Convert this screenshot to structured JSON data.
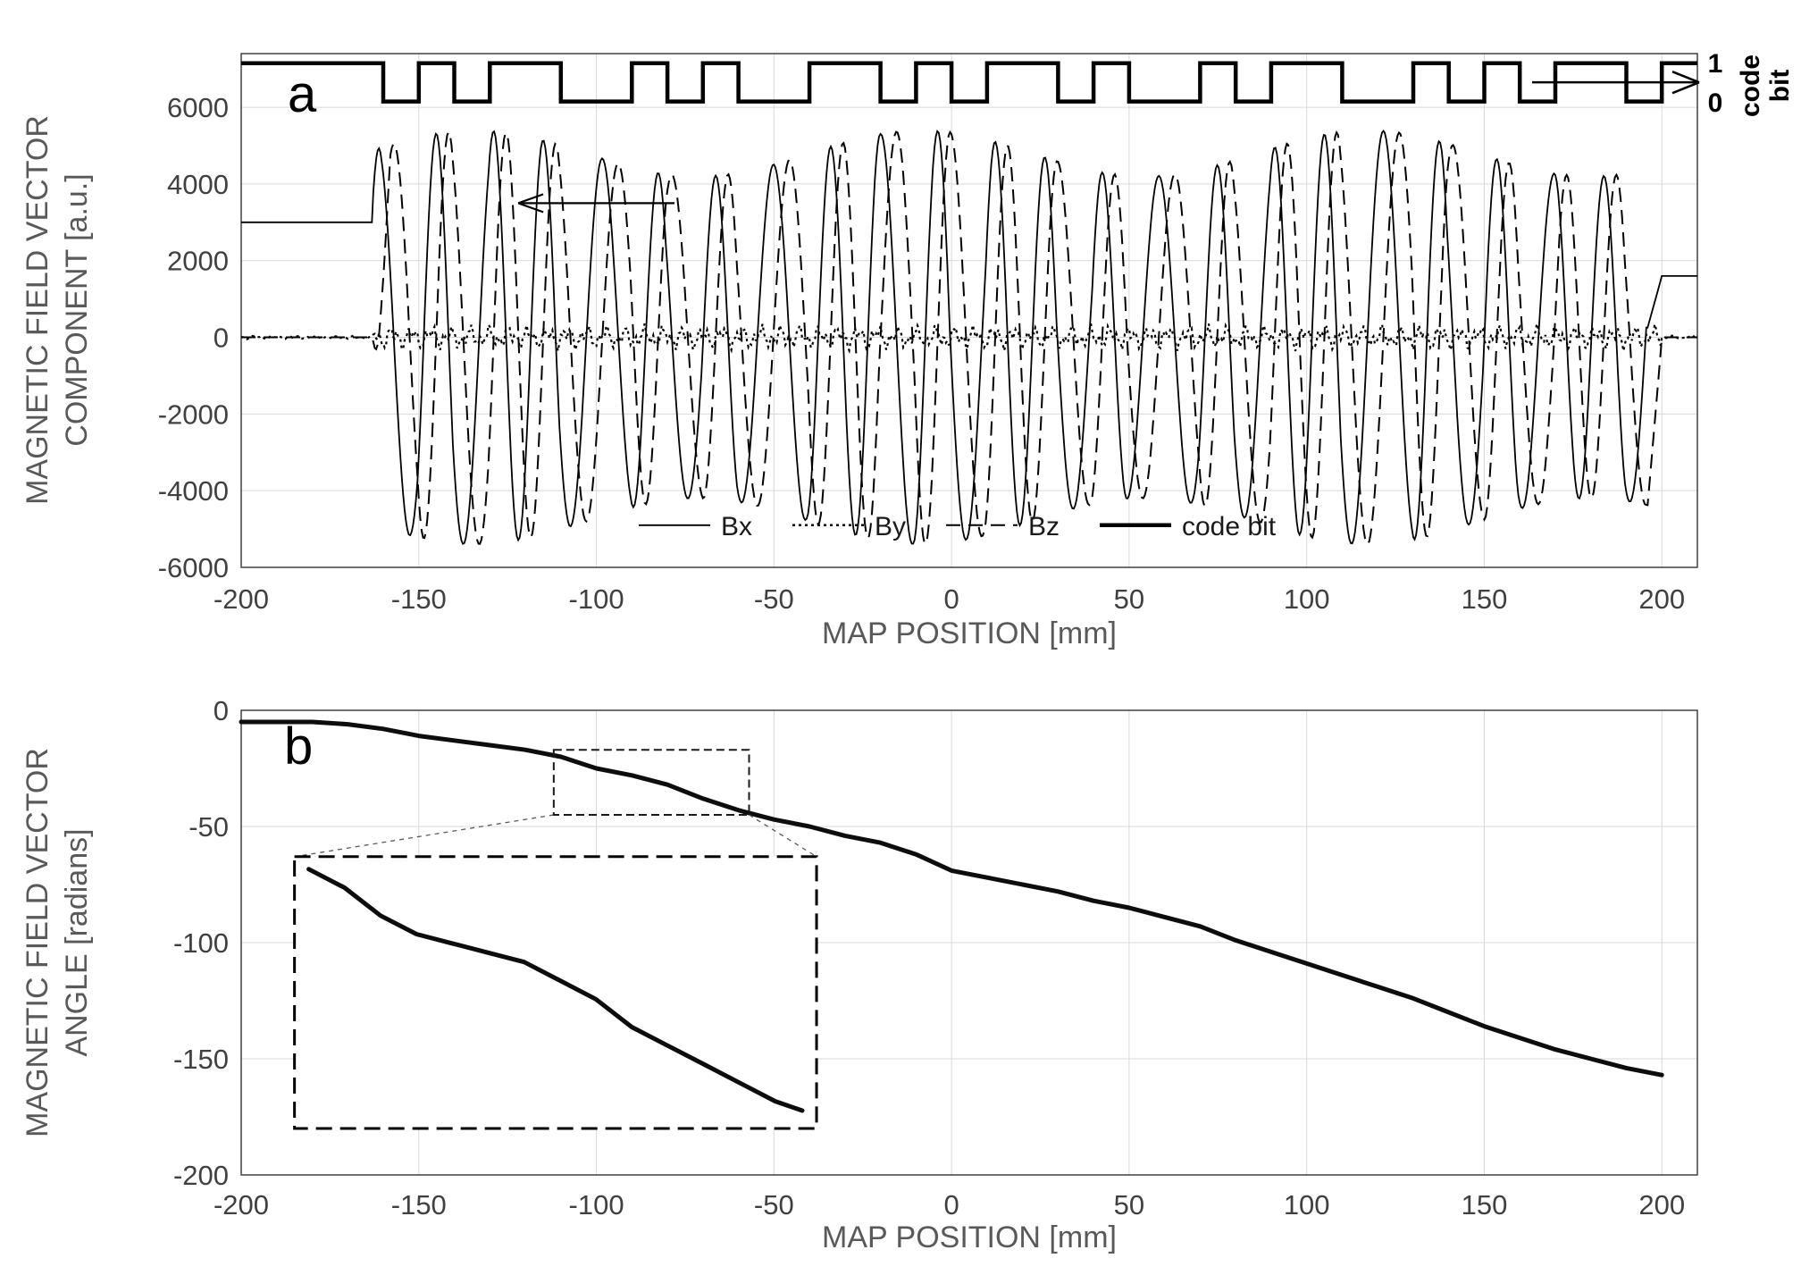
{
  "page": {
    "background": "#ffffff"
  },
  "colors": {
    "grid": "#d9d9d9",
    "axis": "#404040",
    "curve": "#000000",
    "title": "#595959"
  },
  "chart_data": [
    {
      "id": "a",
      "type": "line",
      "panel_label": "a",
      "xlabel": "MAP POSITION [mm]",
      "ylabel": "MAGNETIC FIELD VECTOR\nCOMPONENT [a.u.]",
      "xlim": [
        -200,
        210
      ],
      "ylim": [
        -6000,
        7400
      ],
      "xticks": [
        -200,
        -150,
        -100,
        -50,
        0,
        50,
        100,
        150,
        200
      ],
      "yticks": [
        -6000,
        -4000,
        -2000,
        0,
        2000,
        4000,
        6000
      ],
      "grid": true,
      "legend_position": "bottom-center-inside",
      "legend": [
        {
          "name": "Bx",
          "style": "solid-thin"
        },
        {
          "name": "By",
          "style": "dotted"
        },
        {
          "name": "Bz",
          "style": "long-dash"
        },
        {
          "name": "code bit",
          "style": "solid-thick"
        }
      ],
      "code_bit_labels": {
        "one": "1",
        "zero": "0",
        "axis_label": "code\nbit"
      },
      "code_bits": [
        1,
        1,
        1,
        1,
        0,
        1,
        0,
        1,
        1,
        0,
        0,
        1,
        0,
        1,
        0,
        0,
        1,
        1,
        0,
        1,
        0,
        1,
        1,
        0,
        1,
        0,
        0,
        1,
        0,
        1,
        1,
        0,
        0,
        1,
        0,
        1,
        0,
        1,
        1,
        0,
        1
      ],
      "code_levels": {
        "zero": 6150,
        "one": 7150
      },
      "signal_model": {
        "start_mm": -163,
        "end_mm": 200,
        "tail_mm": 196,
        "amplitude_base": 4800,
        "amplitude_mod": 600,
        "amplitude_mod_freq": 0.05,
        "rad_per_mm_base": 0.4,
        "rad_per_mm_bit_dev": 0.05,
        "phase_offset": -0.86,
        "bx_lead_level": 3000,
        "bx_tail_level": 1600,
        "by_noise_amp": 160
      },
      "annotations": {
        "left_arrow": {
          "x_from": -78,
          "x_to": -122,
          "y": 3500
        },
        "right_arrow_y": 6650
      }
    },
    {
      "id": "b",
      "type": "line",
      "panel_label": "b",
      "xlabel": "MAP POSITION [mm]",
      "ylabel": "MAGNETIC FIELD VECTOR\nANGLE [radians]",
      "xlim": [
        -200,
        210
      ],
      "ylim": [
        -200,
        0
      ],
      "xticks": [
        -200,
        -150,
        -100,
        -50,
        0,
        50,
        100,
        150,
        200
      ],
      "yticks": [
        0,
        -50,
        -100,
        -150,
        -200
      ],
      "grid": true,
      "series": [
        {
          "name": "magnetic field vector angle",
          "x": [
            -200,
            -190,
            -180,
            -170,
            -160,
            -150,
            -140,
            -130,
            -120,
            -110,
            -100,
            -90,
            -80,
            -70,
            -60,
            -50,
            -40,
            -30,
            -20,
            -10,
            0,
            10,
            20,
            30,
            40,
            50,
            60,
            70,
            80,
            90,
            100,
            110,
            120,
            130,
            140,
            150,
            160,
            170,
            180,
            190,
            200
          ],
          "y": [
            -5,
            -5,
            -5,
            -6,
            -8,
            -11,
            -13,
            -15,
            -17,
            -20,
            -25,
            -28,
            -32,
            -38,
            -43,
            -47,
            -50,
            -54,
            -57,
            -62,
            -69,
            -72,
            -75,
            -78,
            -82,
            -85,
            -89,
            -93,
            -99,
            -104,
            -109,
            -114,
            -119,
            -124,
            -130,
            -136,
            -141,
            -146,
            -150,
            -154,
            -157
          ]
        }
      ],
      "zoom": {
        "source_box": {
          "x1": -112,
          "x2": -57,
          "y1": -17,
          "y2": -45
        },
        "inset_box": {
          "x1": -185,
          "x2": -38,
          "y1": -63,
          "y2": -180
        },
        "inset_points": {
          "x": [
            -112,
            -108,
            -104,
            -100,
            -96,
            -92,
            -88,
            -84,
            -80,
            -76,
            -72,
            -68,
            -64,
            -60,
            -57
          ],
          "y": [
            -18,
            -20,
            -23,
            -25,
            -26,
            -27,
            -28,
            -30,
            -32,
            -35,
            -37,
            -39,
            -41,
            -43,
            -44
          ]
        }
      }
    }
  ]
}
